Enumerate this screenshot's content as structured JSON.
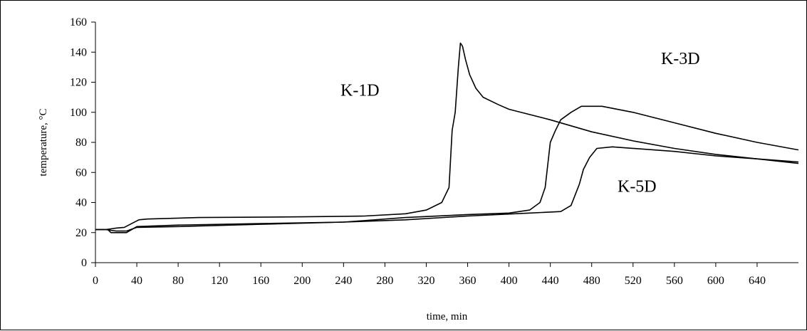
{
  "chart_data": {
    "type": "line",
    "title": "",
    "xlabel": "time, min",
    "ylabel": "temperature,  °C",
    "xlim": [
      0,
      680
    ],
    "ylim": [
      0,
      160
    ],
    "x_ticks": [
      0,
      40,
      80,
      120,
      160,
      200,
      240,
      280,
      320,
      360,
      400,
      440,
      480,
      520,
      560,
      600,
      640
    ],
    "y_ticks": [
      0,
      20,
      40,
      60,
      80,
      100,
      120,
      140,
      160
    ],
    "grid": false,
    "legend": "none",
    "line_color": "#000000",
    "series": [
      {
        "name": "K-1D",
        "x": [
          0,
          10,
          15,
          20,
          28,
          35,
          42,
          50,
          100,
          200,
          260,
          300,
          320,
          335,
          342,
          345,
          348,
          351,
          353,
          355,
          358,
          362,
          368,
          375,
          390,
          400,
          440,
          480,
          520,
          560,
          600,
          640,
          680
        ],
        "y": [
          22,
          22,
          22.5,
          23,
          23.5,
          26,
          28.5,
          29,
          30,
          30.5,
          31,
          32.5,
          35,
          40,
          50,
          88,
          100,
          130,
          146,
          144,
          135,
          125,
          116,
          110,
          105,
          102,
          95,
          87,
          81,
          76,
          72,
          69,
          66
        ]
      },
      {
        "name": "K-3D",
        "x": [
          0,
          10,
          20,
          30,
          40,
          80,
          160,
          240,
          300,
          360,
          400,
          420,
          430,
          435,
          440,
          445,
          450,
          460,
          470,
          490,
          520,
          560,
          600,
          640,
          680
        ],
        "y": [
          22,
          22,
          21,
          21,
          23.5,
          24,
          25.5,
          27,
          30,
          32,
          33,
          35,
          40,
          50,
          80,
          88,
          95,
          100,
          104,
          104,
          100,
          93,
          86,
          80,
          75
        ]
      },
      {
        "name": "K-5D",
        "x": [
          0,
          12,
          15,
          30,
          40,
          80,
          160,
          240,
          300,
          360,
          420,
          450,
          460,
          468,
          472,
          478,
          485,
          500,
          560,
          600,
          640,
          680
        ],
        "y": [
          22,
          22,
          20,
          20,
          24,
          25,
          26,
          27,
          28.5,
          31,
          33,
          34,
          38,
          52,
          62,
          70,
          76,
          77,
          74,
          71,
          69,
          67
        ]
      }
    ],
    "annotations": [
      {
        "text": "K-1D",
        "x": 237,
        "y": 111
      },
      {
        "text": "K-3D",
        "x": 547,
        "y": 132
      },
      {
        "text": "K-5D",
        "x": 505,
        "y": 47
      }
    ]
  }
}
